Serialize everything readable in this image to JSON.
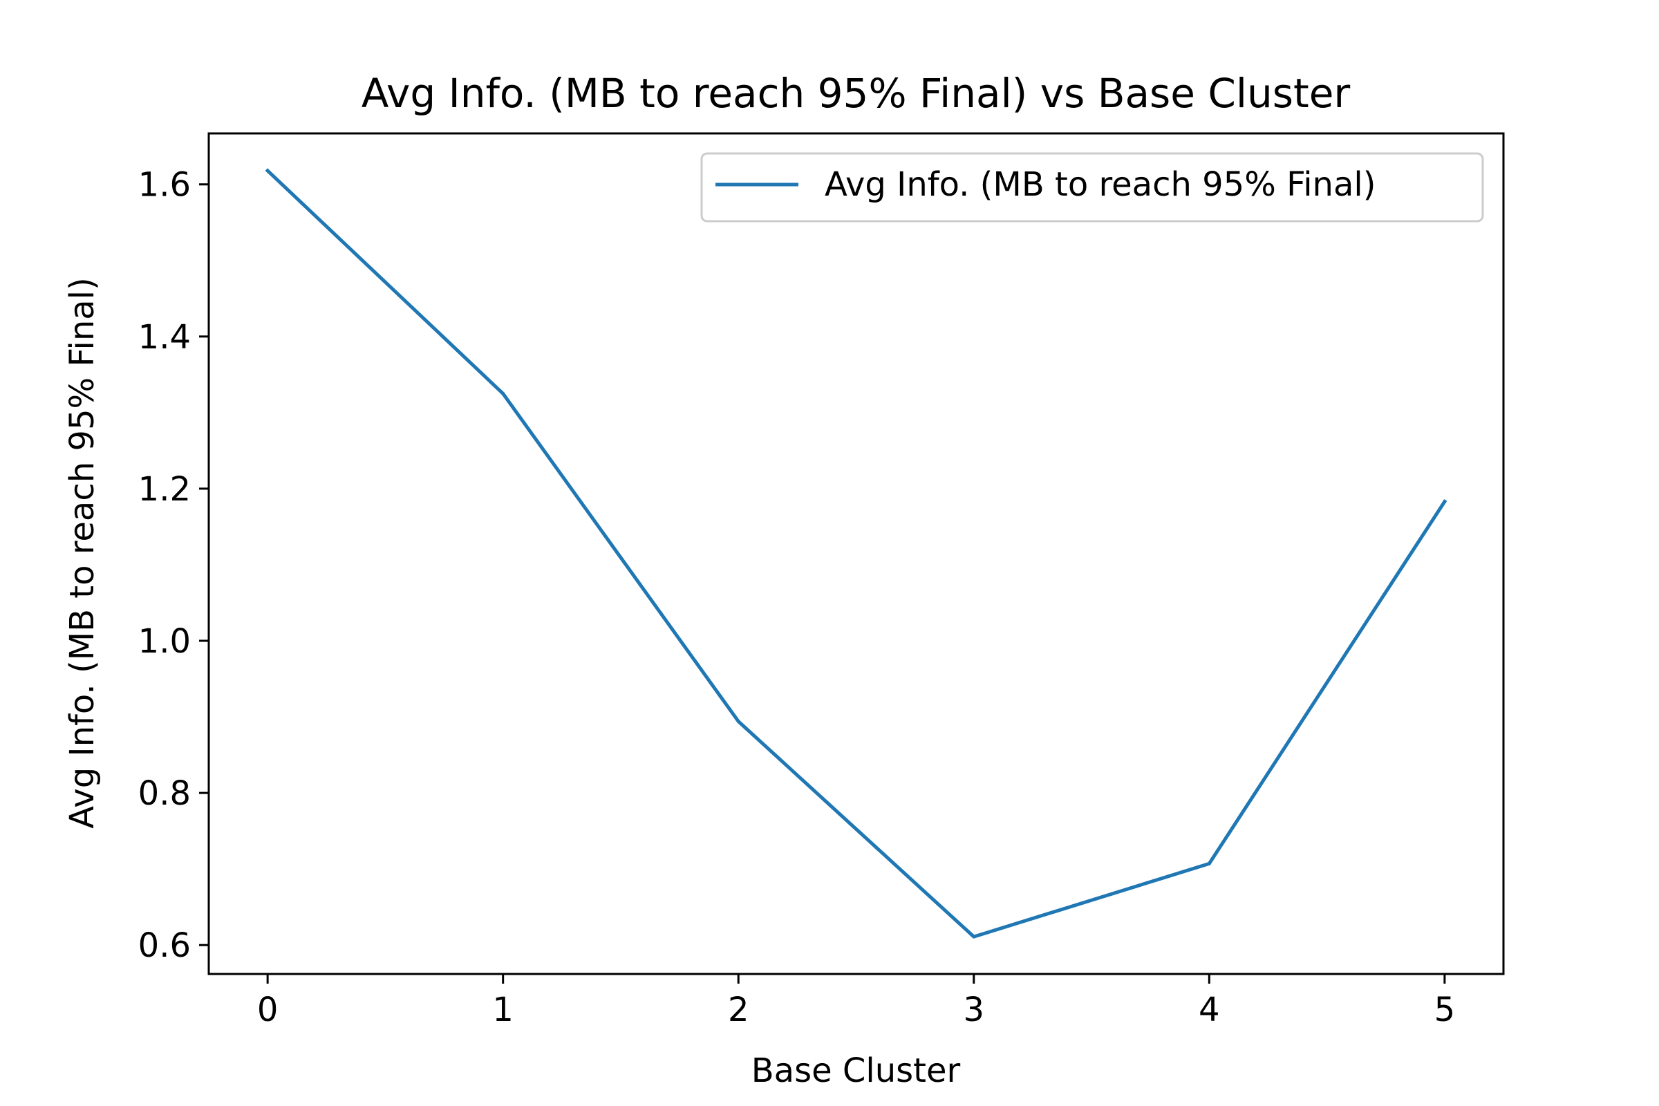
{
  "chart_data": {
    "type": "line",
    "title": "Avg Info. (MB to reach 95% Final) vs Base Cluster",
    "xlabel": "Base Cluster",
    "ylabel": "Avg Info. (MB to reach 95% Final)",
    "xlim": [
      -0.25,
      5.25
    ],
    "ylim": [
      0.562,
      1.667
    ],
    "xticks": [
      0,
      1,
      2,
      3,
      4,
      5
    ],
    "yticks": [
      0.6,
      0.8,
      1.0,
      1.2,
      1.4,
      1.6
    ],
    "xtick_labels": [
      "0",
      "1",
      "2",
      "3",
      "4",
      "5"
    ],
    "ytick_labels": [
      "0.6",
      "0.8",
      "1.0",
      "1.2",
      "1.4",
      "1.6"
    ],
    "grid": false,
    "legend_position": "top-right",
    "series": [
      {
        "name": "Avg Info. (MB to reach 95% Final)",
        "color": "#1f77b4",
        "x": [
          0,
          1,
          2,
          3,
          4,
          5
        ],
        "y": [
          1.618,
          1.325,
          0.894,
          0.611,
          0.707,
          1.183
        ]
      }
    ]
  }
}
